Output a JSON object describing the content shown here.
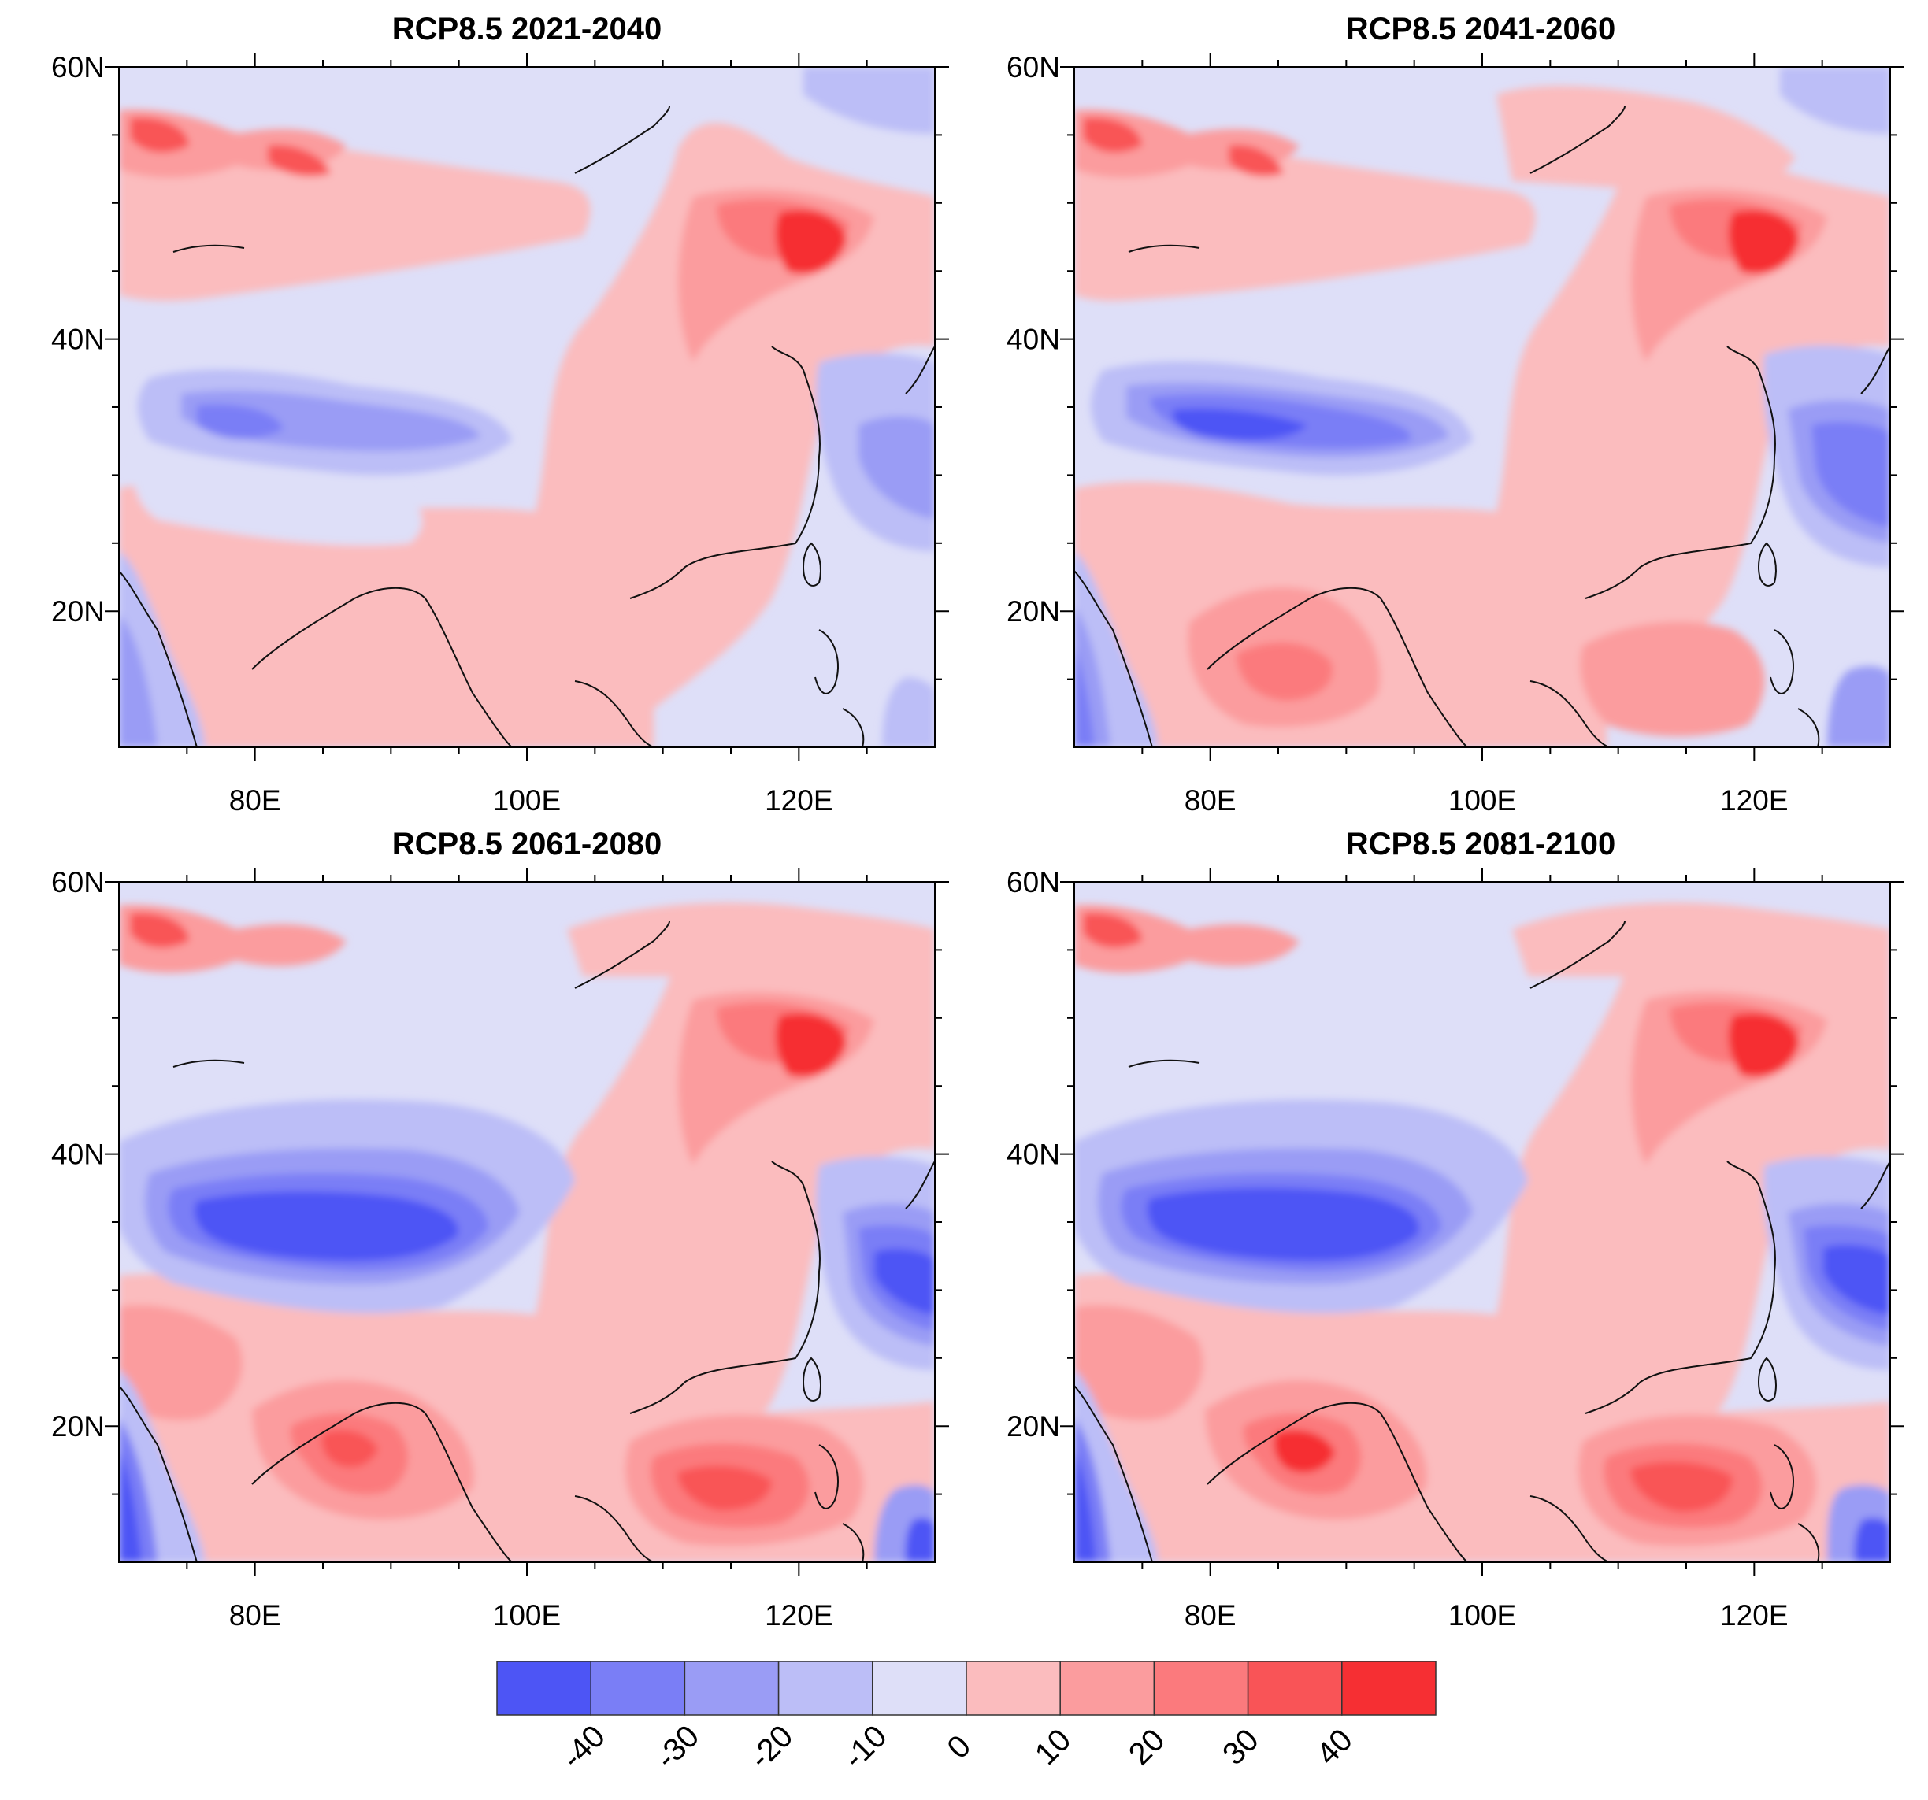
{
  "figure": {
    "panels": [
      {
        "id": "p1",
        "title": "RCP8.5 2021-2040"
      },
      {
        "id": "p2",
        "title": "RCP8.5 2041-2060"
      },
      {
        "id": "p3",
        "title": "RCP8.5 2061-2080"
      },
      {
        "id": "p4",
        "title": "RCP8.5 2081-2100"
      }
    ],
    "axes": {
      "lat_labels": [
        "60N",
        "40N",
        "20N"
      ],
      "lon_labels": [
        "80E",
        "100E",
        "120E"
      ],
      "lon_range": [
        70,
        130
      ],
      "lat_range": [
        10,
        60
      ]
    },
    "colorbar": {
      "labels": [
        "-40",
        "-30",
        "-20",
        "-10",
        "0",
        "10",
        "20",
        "30",
        "40"
      ],
      "colors": [
        "#4d55f5",
        "#7a7ef6",
        "#9a9cf5",
        "#bcbef7",
        "#dedff8",
        "#fbbcbe",
        "#fb9c9e",
        "#fb7a7d",
        "#f95457",
        "#f62f33"
      ]
    }
  },
  "palette": {
    "background": "#dedff8",
    "coast": "#111111"
  }
}
